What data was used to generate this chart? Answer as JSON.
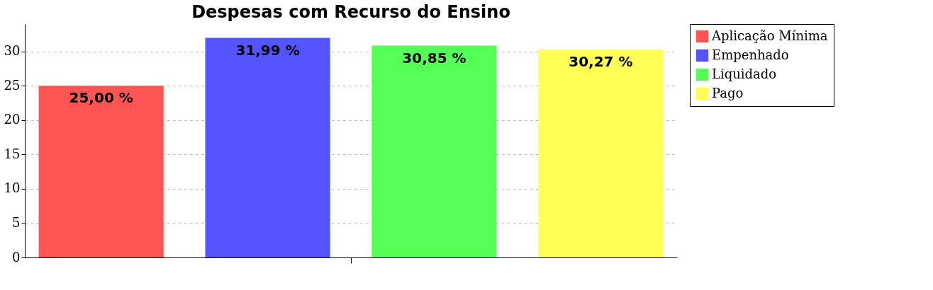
{
  "chart_data": {
    "type": "bar",
    "title": "Despesas com Recurso do Ensino",
    "categories": [
      null
    ],
    "series": [
      {
        "name": "Aplicação Mínima",
        "color": "#ff5555",
        "values": [
          25.0
        ],
        "value_labels": [
          "25,00 %"
        ]
      },
      {
        "name": "Empenhado",
        "color": "#5555ff",
        "values": [
          31.99
        ],
        "value_labels": [
          "31,99 %"
        ]
      },
      {
        "name": "Liquidado",
        "color": "#55ff55",
        "values": [
          30.85
        ],
        "value_labels": [
          "30,85 %"
        ]
      },
      {
        "name": "Pago",
        "color": "#ffff55",
        "values": [
          30.27
        ],
        "value_labels": [
          "30,27 %"
        ]
      }
    ],
    "ylim": [
      0,
      34
    ],
    "yticks": [
      0,
      5,
      10,
      15,
      20,
      25,
      30
    ],
    "grid": "y",
    "legend": "right"
  }
}
